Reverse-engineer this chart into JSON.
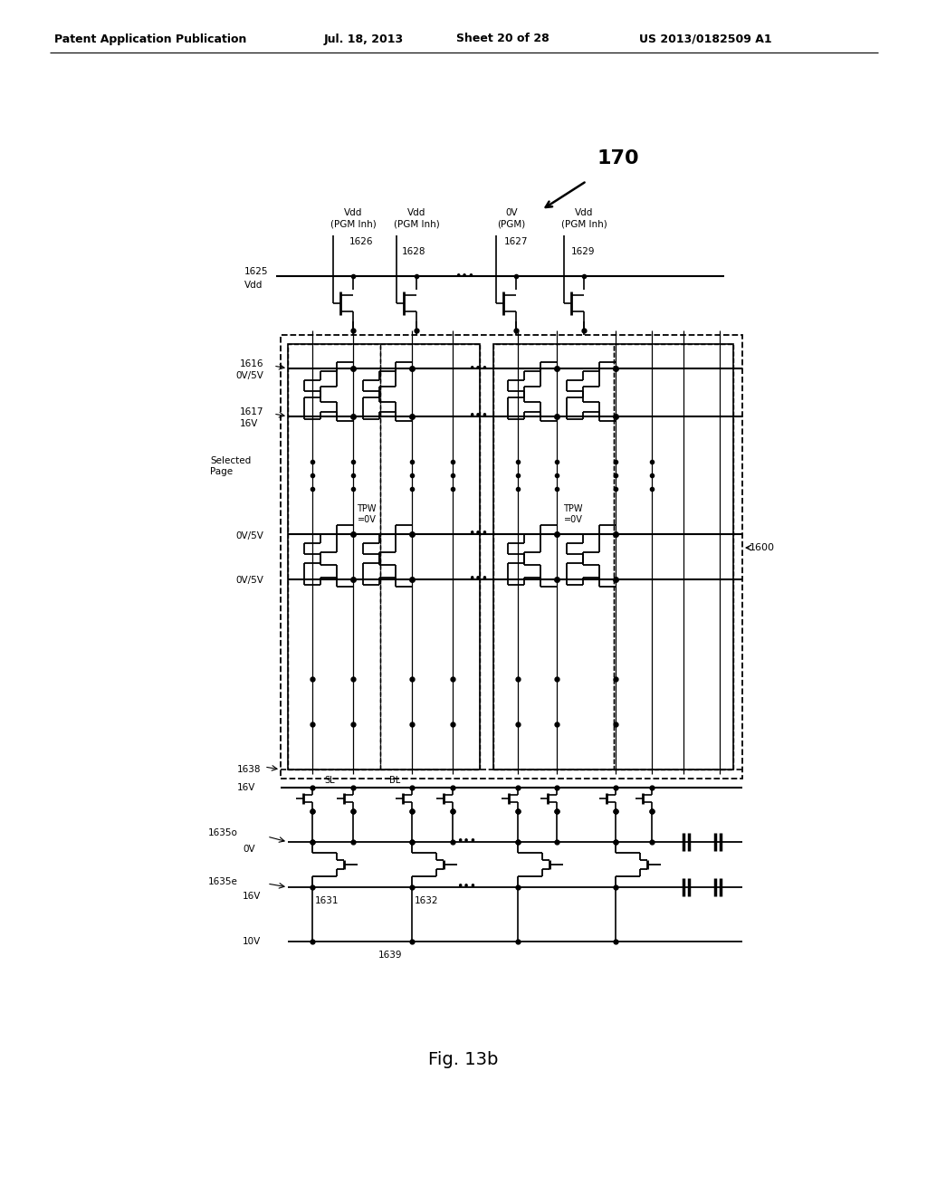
{
  "bg_color": "#ffffff",
  "header_text": "Patent Application Publication",
  "header_date": "Jul. 18, 2013",
  "header_sheet": "Sheet 20 of 28",
  "header_patent": "US 2013/0182509 A1",
  "fig_label": "Fig. 13b",
  "title_num": "170",
  "label_1600": "1600",
  "figsize": [
    10.24,
    13.2
  ],
  "dpi": 100
}
